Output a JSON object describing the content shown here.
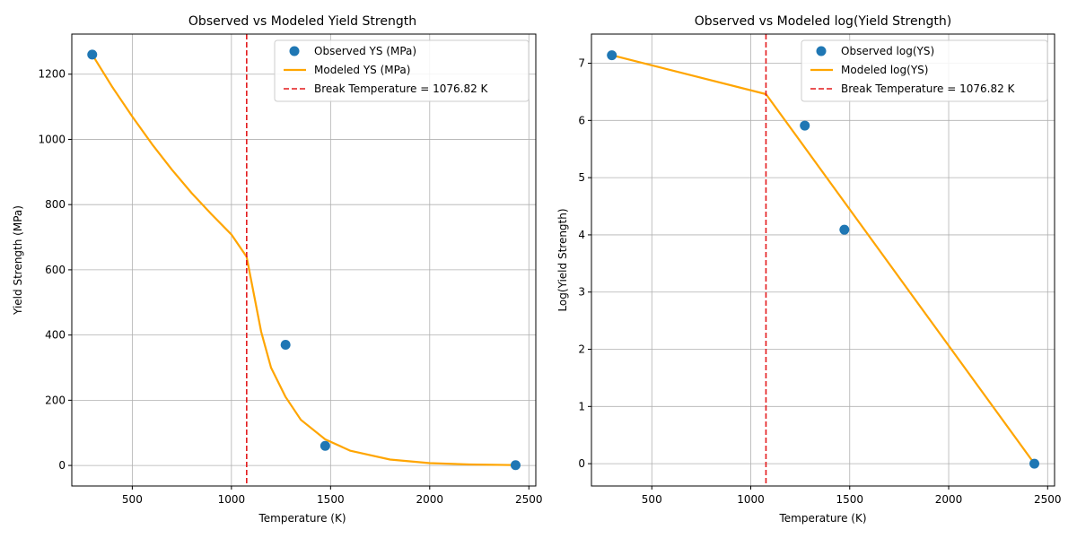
{
  "chart_data": [
    {
      "type": "line",
      "title": "Observed vs Modeled Yield Strength",
      "xlabel": "Temperature (K)",
      "ylabel": "Yield Strength (MPa)",
      "xlim": [
        195,
        2535
      ],
      "ylim": [
        -63,
        1323
      ],
      "xticks": [
        500,
        1000,
        1500,
        2000,
        2500
      ],
      "yticks": [
        0,
        200,
        400,
        600,
        800,
        1000,
        1200
      ],
      "grid": true,
      "legend_position": "top-right",
      "break_temperature": 1076.82,
      "series": [
        {
          "name": "Observed YS (MPa)",
          "kind": "scatter",
          "color": "#1f77b4",
          "x": [
            298,
            1273,
            1473,
            2433
          ],
          "y": [
            1260,
            370,
            60,
            1
          ]
        },
        {
          "name": "Modeled YS (MPa)",
          "kind": "line",
          "color": "#ffa500",
          "x": [
            298,
            400,
            500,
            600,
            700,
            800,
            900,
            1000,
            1076.82,
            1150,
            1200,
            1273,
            1350,
            1473,
            1600,
            1800,
            2000,
            2200,
            2433
          ],
          "y": [
            1260,
            1160,
            1070,
            985,
            907,
            835,
            770,
            708,
            640,
            410,
            300,
            210,
            140,
            80,
            45,
            18,
            7,
            3,
            1
          ]
        },
        {
          "name": "Break Temperature = 1076.82 K",
          "kind": "vline",
          "color": "#e41a1c",
          "x": 1076.82
        }
      ]
    },
    {
      "type": "line",
      "title": "Observed vs Modeled log(Yield Strength)",
      "xlabel": "Temperature (K)",
      "ylabel": "Log(Yield Strength)",
      "xlim": [
        195,
        2535
      ],
      "ylim": [
        -0.39,
        7.51
      ],
      "xticks": [
        500,
        1000,
        1500,
        2000,
        2500
      ],
      "yticks": [
        0,
        1,
        2,
        3,
        4,
        5,
        6,
        7
      ],
      "grid": true,
      "legend_position": "top-right",
      "break_temperature": 1076.82,
      "series": [
        {
          "name": "Observed log(YS)",
          "kind": "scatter",
          "color": "#1f77b4",
          "x": [
            298,
            1273,
            1473,
            2433
          ],
          "y": [
            7.14,
            5.91,
            4.09,
            0.0
          ]
        },
        {
          "name": "Modeled log(YS)",
          "kind": "line",
          "color": "#ffa500",
          "x": [
            298,
            1076.82,
            2433
          ],
          "y": [
            7.14,
            6.46,
            0.0
          ]
        },
        {
          "name": "Break Temperature = 1076.82 K",
          "kind": "vline",
          "color": "#e41a1c",
          "x": 1076.82
        }
      ]
    }
  ]
}
